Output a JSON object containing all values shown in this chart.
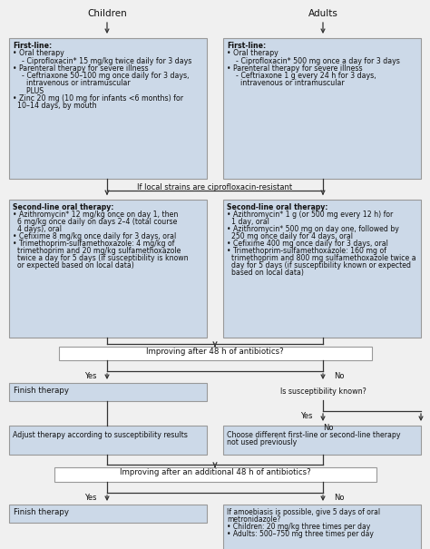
{
  "bg_color": "#f0f0f0",
  "box_fill": "#ccd9e8",
  "box_edge": "#999999",
  "white_fill": "#ffffff",
  "text_color": "#111111",
  "arrow_color": "#333333",
  "figsize": [
    4.74,
    6.05
  ],
  "dpi": 100,
  "children_first": "First-line:\n• Oral therapy\n    - Ciprofloxacin* 15 mg/kg twice daily for 3 days\n• Parenteral therapy for severe illness\n    - Ceftriaxone 50–100 mg once daily for 3 days,\n      intravenous or intramuscular\n      PLUS\n• Zinc 20 mg (10 mg for infants <6 months) for\n  10–14 days, by mouth",
  "adults_first": "First-line:\n• Oral therapy\n    - Ciprofloxacin* 500 mg once a day for 3 days\n• Parenteral therapy for severe illness\n    - Ceftriaxone 1 g every 24 h for 3 days,\n      intravenous or intramuscular",
  "children_second": "Second-line oral therapy:\n• Azithromycin* 12 mg/kg once on day 1, then\n  6 mg/kg once daily on days 2–4 (total course\n  4 days), oral\n• Cefixime 8 mg/kg once daily for 3 days, oral\n• Trimethoprim-sulfamethoxazole: 4 mg/kg of\n  trimethoprim and 20 mg/kg sulfamethoxazole\n  twice a day for 5 days (if susceptibility is known\n  or expected based on local data)",
  "adults_second": "Second-line oral therapy:\n• Azithromycin* 1 g (or 500 mg every 12 h) for\n  1 day, oral\n• Azithromycin* 500 mg on day one, followed by\n  250 mg once daily for 4 days, oral\n• Cefixime 400 mg once daily for 3 days, oral\n• Trimethoprim-sulfamethoxazole: 160 mg of\n  trimethoprim and 800 mg sulfamethoxazole twice a\n  day for 5 days (if susceptibility known or expected\n  based on local data)",
  "cipro_text": "If local strains are ciprofloxacin-resistant",
  "q1_text": "Improving after 48 h of antibiotics?",
  "finish1_text": "Finish therapy",
  "suscept_text": "Is susceptibility known?",
  "adjust_text": "Adjust therapy according to susceptibility results",
  "choose_text": "Choose different first-line or second-line therapy\nnot used previously",
  "q2_text": "Improving after an additional 48 h of antibiotics?",
  "finish2_text": "Finish therapy",
  "amoebiasis_text": "If amoebiasis is possible, give 5 days of oral\nmetronidazole?\n• Children: 20 mg/kg three times per day\n• Adults: 500–750 mg three times per day",
  "children_label": "Children",
  "adults_label": "Adults",
  "yes": "Yes",
  "no": "No"
}
